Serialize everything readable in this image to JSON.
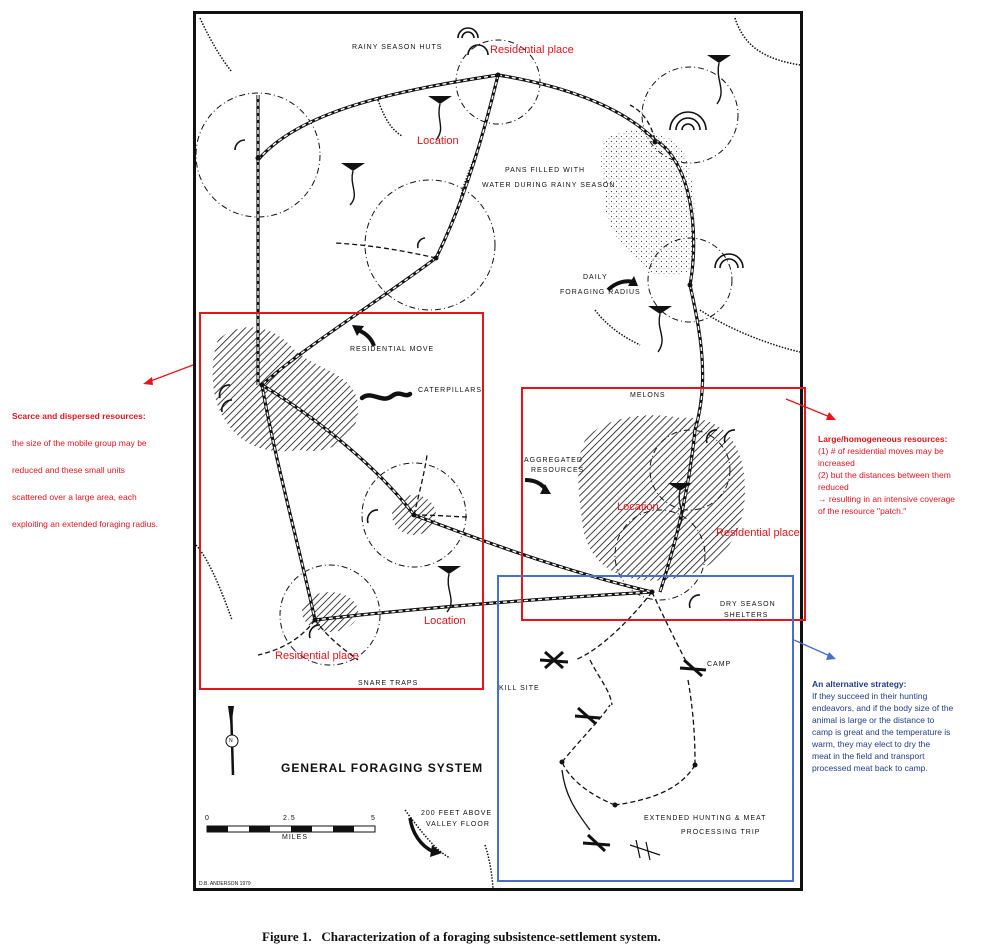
{
  "map_labels": {
    "rainy_season_huts": "RAINY SEASON HUTS",
    "pans_line1": "PANS FILLED WITH",
    "pans_line2": "WATER DURING RAINY SEASON",
    "daily_line1": "DAILY",
    "daily_line2": "FORAGING RADIUS",
    "residential_move": "RESIDENTIAL MOVE",
    "caterpillars": "CATERPILLARS",
    "melons": "MELONS",
    "aggregated_line1": "AGGREGATED",
    "aggregated_line2": "RESOURCES",
    "dry_line1": "DRY SEASON",
    "dry_line2": "SHELTERS",
    "camp": "CAMP",
    "kill_site": "KILL SITE",
    "snare_traps": "SNARE TRAPS",
    "title": "GENERAL FORAGING SYSTEM",
    "elev_line1": "200 FEET ABOVE",
    "elev_line2": "VALLEY FLOOR",
    "extended_line1": "EXTENDED HUNTING & MEAT",
    "extended_line2": "PROCESSING TRIP",
    "scale_0": "0",
    "scale_mid": "2.5",
    "scale_5": "5",
    "scale_unit": "MILES",
    "north": "N",
    "credit": "D.B. ANDERSON 1979"
  },
  "red_labels": {
    "residential_top": "Residential place",
    "location_top": "Location",
    "location_right": "Location",
    "residential_right": "Residential place",
    "location_bottom": "Location",
    "residential_bottom": "Residential place"
  },
  "notes": {
    "left_title": "Scarce and dispersed resources:",
    "left_lines": [
      "the size of the mobile group may be",
      "reduced and these small units",
      "scattered over a large area, each",
      "exploiting an extended foraging radius."
    ],
    "right_title": "Large/homogeneous resources:",
    "right_lines": [
      "(1)  # of residential moves may be",
      "increased",
      "(2)  but the distances between them",
      "reduced",
      "→  resulting in an intensive coverage",
      "of the resource \"patch.\""
    ],
    "blue_title": "An alternative strategy:",
    "blue_lines": [
      "If they succeed in their hunting",
      "endeavors, and if the body size of the",
      "animal is large or the distance to",
      "camp is great and the temperature is",
      "warm, they may elect to dry the",
      "meat in the field and transport",
      "processed meat back to camp."
    ]
  },
  "caption": "Figure 1.   Characterization of a foraging subsistence-settlement system.",
  "colors": {
    "annotation_red": "#e8141c",
    "annotation_blue": "#4a6fc7",
    "blue_text": "#1f3d8c",
    "ink": "#111111"
  }
}
